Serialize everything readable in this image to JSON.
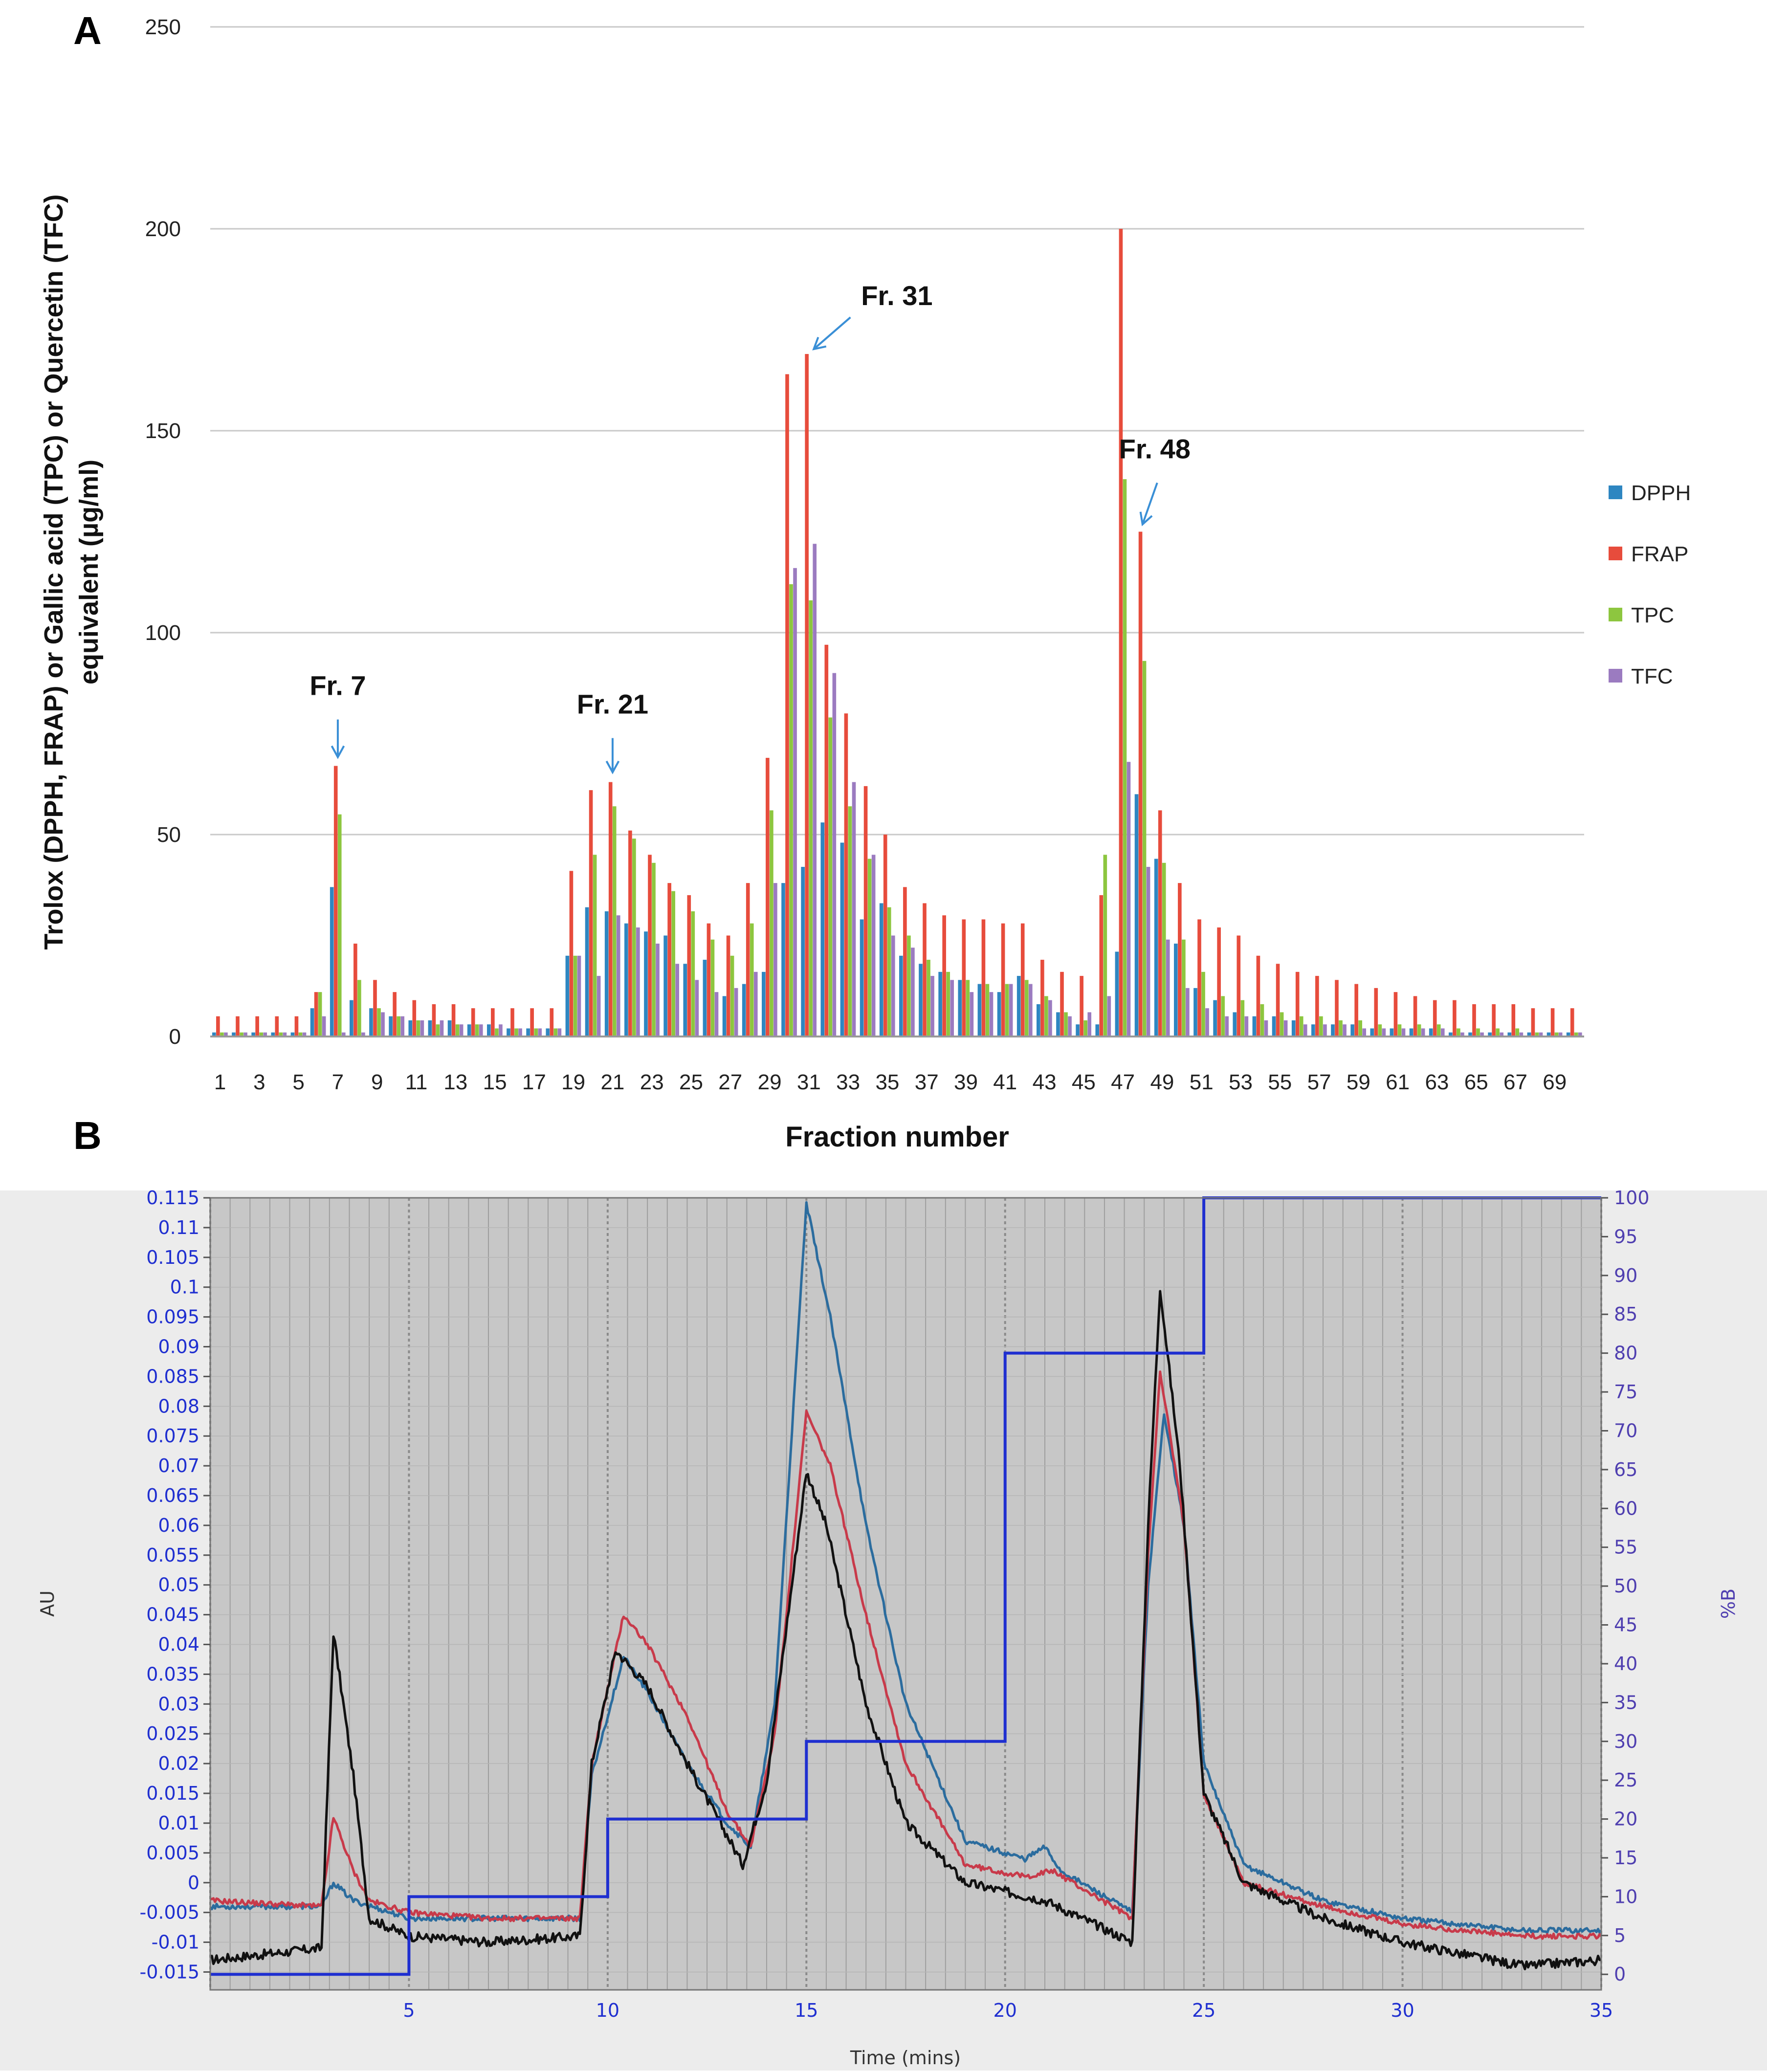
{
  "panel_a": {
    "label": "A",
    "colors": {
      "DPPH": "#2e86c1",
      "FRAP": "#e74c3c",
      "TPC": "#8dc63f",
      "TFC": "#9b7bc0"
    },
    "chart_data": {
      "type": "bar",
      "xlabel": "Fraction number",
      "ylabel_line1": "Trolox (DPPH, FRAP) or Gallic acid (TPC) or Quercetin (TFC)",
      "ylabel_line2": "equivalent (µg/ml)",
      "ylim": [
        0,
        250
      ],
      "yticks": [
        "0",
        "50",
        "100",
        "150",
        "200",
        "250"
      ],
      "categories": [
        "1",
        "2",
        "3",
        "4",
        "5",
        "6",
        "7",
        "8",
        "9",
        "10",
        "11",
        "12",
        "13",
        "14",
        "15",
        "16",
        "17",
        "18",
        "19",
        "20",
        "21",
        "22",
        "23",
        "24",
        "25",
        "26",
        "27",
        "28",
        "29",
        "30",
        "31",
        "32",
        "33",
        "34",
        "35",
        "36",
        "37",
        "38",
        "39",
        "40",
        "41",
        "42",
        "43",
        "44",
        "45",
        "46",
        "47",
        "48",
        "49",
        "50",
        "51",
        "52",
        "53",
        "54",
        "55",
        "56",
        "57",
        "58",
        "59",
        "60",
        "61",
        "62",
        "63",
        "64",
        "65",
        "66",
        "67",
        "68",
        "69",
        "70"
      ],
      "xtick_labels": [
        "1",
        "3",
        "5",
        "7",
        "9",
        "11",
        "13",
        "15",
        "17",
        "19",
        "21",
        "23",
        "25",
        "27",
        "29",
        "31",
        "33",
        "35",
        "37",
        "39",
        "41",
        "43",
        "45",
        "47",
        "49",
        "51",
        "53",
        "55",
        "57",
        "59",
        "61",
        "63",
        "65",
        "67",
        "69"
      ],
      "series": [
        {
          "name": "DPPH",
          "values": [
            1,
            1,
            1,
            1,
            1,
            7,
            37,
            9,
            7,
            5,
            4,
            4,
            4,
            3,
            3,
            2,
            2,
            2,
            20,
            32,
            31,
            28,
            26,
            25,
            18,
            19,
            10,
            13,
            16,
            38,
            42,
            53,
            48,
            29,
            33,
            20,
            18,
            16,
            14,
            13,
            11,
            15,
            8,
            6,
            3,
            3,
            21,
            60,
            44,
            23,
            12,
            9,
            6,
            5,
            5,
            4,
            3,
            3,
            3,
            2,
            2,
            2,
            2,
            1,
            1,
            1,
            1,
            1,
            1,
            1
          ]
        },
        {
          "name": "FRAP",
          "values": [
            5,
            5,
            5,
            5,
            5,
            11,
            67,
            23,
            14,
            11,
            9,
            8,
            8,
            7,
            7,
            7,
            7,
            7,
            41,
            61,
            63,
            51,
            45,
            38,
            35,
            28,
            25,
            38,
            69,
            164,
            169,
            97,
            80,
            62,
            50,
            37,
            33,
            30,
            29,
            29,
            28,
            28,
            19,
            16,
            15,
            35,
            200,
            125,
            56,
            38,
            29,
            27,
            25,
            20,
            18,
            16,
            15,
            14,
            13,
            12,
            11,
            10,
            9,
            9,
            8,
            8,
            8,
            7,
            7,
            7
          ]
        },
        {
          "name": "TPC",
          "values": [
            1,
            1,
            1,
            1,
            1,
            11,
            55,
            14,
            7,
            5,
            4,
            3,
            3,
            3,
            2,
            2,
            2,
            2,
            20,
            45,
            57,
            49,
            43,
            36,
            31,
            24,
            20,
            28,
            56,
            112,
            108,
            79,
            57,
            44,
            32,
            25,
            19,
            16,
            14,
            13,
            13,
            14,
            10,
            6,
            4,
            45,
            138,
            93,
            43,
            24,
            16,
            10,
            9,
            8,
            6,
            5,
            5,
            4,
            4,
            3,
            3,
            3,
            3,
            2,
            2,
            2,
            2,
            1,
            1,
            1
          ]
        },
        {
          "name": "TFC",
          "values": [
            1,
            1,
            1,
            1,
            1,
            5,
            1,
            1,
            6,
            5,
            4,
            4,
            3,
            3,
            3,
            2,
            2,
            2,
            20,
            15,
            30,
            27,
            23,
            18,
            14,
            11,
            12,
            16,
            38,
            116,
            122,
            90,
            63,
            45,
            25,
            22,
            15,
            14,
            11,
            11,
            13,
            13,
            9,
            5,
            6,
            10,
            68,
            42,
            24,
            12,
            7,
            5,
            5,
            4,
            4,
            3,
            3,
            3,
            2,
            2,
            2,
            2,
            2,
            1,
            1,
            1,
            1,
            1,
            1,
            1
          ]
        }
      ],
      "annotations": [
        "Fr. 7",
        "Fr. 21",
        "Fr. 31",
        "Fr. 48"
      ]
    }
  },
  "panel_b": {
    "label": "B",
    "colors": {
      "bg": "#c7c7c7",
      "grid": "#9e9e9e",
      "black": "#111111",
      "red": "#c83a4a",
      "blue": "#2b6c9e",
      "gradient": "#1f2fd0",
      "right_axis": "#4f3fb0"
    },
    "chart_data": {
      "type": "line",
      "xlabel": "Time (mins)",
      "ylabel_left": "AU",
      "ylabel_right": "%B",
      "xlim": [
        0,
        35
      ],
      "ylim_left": [
        -0.018,
        0.115
      ],
      "ylim_right": [
        -2,
        100
      ],
      "xticks": [
        "5",
        "10",
        "15",
        "20",
        "25",
        "30",
        "35"
      ],
      "yticks_left": [
        "0.115",
        "0.11",
        "0.105",
        "0.1",
        "0.095",
        "0.09",
        "0.085",
        "0.08",
        "0.075",
        "0.07",
        "0.065",
        "0.06",
        "0.055",
        "0.05",
        "0.045",
        "0.04",
        "0.035",
        "0.03",
        "0.025",
        "0.02",
        "0.015",
        "0.01",
        "0.005",
        "0",
        "-0.005",
        "-0.01",
        "-0.015"
      ],
      "yticks_right": [
        "100",
        "95",
        "90",
        "85",
        "80",
        "75",
        "70",
        "65",
        "60",
        "55",
        "50",
        "45",
        "40",
        "35",
        "30",
        "25",
        "20",
        "15",
        "10",
        "5",
        "0"
      ],
      "series": [
        {
          "name": "trace-black",
          "points": [
            [
              0,
              -0.013
            ],
            [
              2.8,
              -0.011
            ],
            [
              3.1,
              0.042
            ],
            [
              3.6,
              0.018
            ],
            [
              4.0,
              -0.006
            ],
            [
              5,
              -0.009
            ],
            [
              7,
              -0.01
            ],
            [
              9.3,
              -0.009
            ],
            [
              9.6,
              0.02
            ],
            [
              10.2,
              0.039
            ],
            [
              11,
              0.033
            ],
            [
              12,
              0.02
            ],
            [
              13,
              0.008
            ],
            [
              13.4,
              0.003
            ],
            [
              14,
              0.017
            ],
            [
              15,
              0.069
            ],
            [
              15.5,
              0.06
            ],
            [
              16.5,
              0.03
            ],
            [
              17.5,
              0.01
            ],
            [
              19,
              0.0
            ],
            [
              21,
              -0.003
            ],
            [
              23.2,
              -0.01
            ],
            [
              23.6,
              0.06
            ],
            [
              23.9,
              0.1
            ],
            [
              24.4,
              0.07
            ],
            [
              25,
              0.015
            ],
            [
              26,
              0.0
            ],
            [
              28,
              -0.006
            ],
            [
              30,
              -0.01
            ],
            [
              33,
              -0.014
            ],
            [
              35,
              -0.013
            ]
          ]
        },
        {
          "name": "trace-red",
          "points": [
            [
              0,
              -0.003
            ],
            [
              2.8,
              -0.004
            ],
            [
              3.1,
              0.011
            ],
            [
              3.6,
              0.002
            ],
            [
              4.0,
              -0.003
            ],
            [
              5,
              -0.005
            ],
            [
              7,
              -0.006
            ],
            [
              9.3,
              -0.006
            ],
            [
              9.6,
              0.02
            ],
            [
              10.4,
              0.045
            ],
            [
              11,
              0.04
            ],
            [
              12,
              0.028
            ],
            [
              13,
              0.012
            ],
            [
              13.6,
              0.006
            ],
            [
              14.2,
              0.025
            ],
            [
              15,
              0.079
            ],
            [
              15.6,
              0.07
            ],
            [
              16.5,
              0.045
            ],
            [
              17.5,
              0.02
            ],
            [
              19,
              0.003
            ],
            [
              20.5,
              0.001
            ],
            [
              21.2,
              0.002
            ],
            [
              23.2,
              -0.006
            ],
            [
              23.6,
              0.055
            ],
            [
              23.9,
              0.086
            ],
            [
              24.5,
              0.06
            ],
            [
              25,
              0.015
            ],
            [
              26,
              0.0
            ],
            [
              28,
              -0.004
            ],
            [
              30,
              -0.007
            ],
            [
              33,
              -0.009
            ],
            [
              35,
              -0.009
            ]
          ]
        },
        {
          "name": "trace-blue",
          "points": [
            [
              0,
              -0.004
            ],
            [
              2.8,
              -0.004
            ],
            [
              3.1,
              0.0
            ],
            [
              3.6,
              -0.003
            ],
            [
              5,
              -0.006
            ],
            [
              7,
              -0.006
            ],
            [
              9.3,
              -0.006
            ],
            [
              9.6,
              0.018
            ],
            [
              10.4,
              0.038
            ],
            [
              11,
              0.032
            ],
            [
              12,
              0.02
            ],
            [
              13,
              0.01
            ],
            [
              13.6,
              0.006
            ],
            [
              14.2,
              0.03
            ],
            [
              15,
              0.114
            ],
            [
              15.6,
              0.095
            ],
            [
              16.5,
              0.06
            ],
            [
              17.5,
              0.03
            ],
            [
              19,
              0.007
            ],
            [
              20.5,
              0.004
            ],
            [
              21,
              0.006
            ],
            [
              21.4,
              0.002
            ],
            [
              23.2,
              -0.005
            ],
            [
              23.6,
              0.05
            ],
            [
              24.0,
              0.079
            ],
            [
              24.5,
              0.06
            ],
            [
              25,
              0.02
            ],
            [
              26,
              0.003
            ],
            [
              28,
              -0.003
            ],
            [
              30,
              -0.006
            ],
            [
              33,
              -0.008
            ],
            [
              35,
              -0.008
            ]
          ]
        },
        {
          "name": "gradient-percent-b",
          "points": [
            [
              0,
              0
            ],
            [
              5,
              0
            ],
            [
              5,
              10
            ],
            [
              10,
              10
            ],
            [
              10,
              20
            ],
            [
              15,
              20
            ],
            [
              15,
              30
            ],
            [
              20,
              30
            ],
            [
              20,
              80
            ],
            [
              25,
              80
            ],
            [
              25,
              100
            ],
            [
              35,
              100
            ]
          ]
        }
      ]
    }
  }
}
